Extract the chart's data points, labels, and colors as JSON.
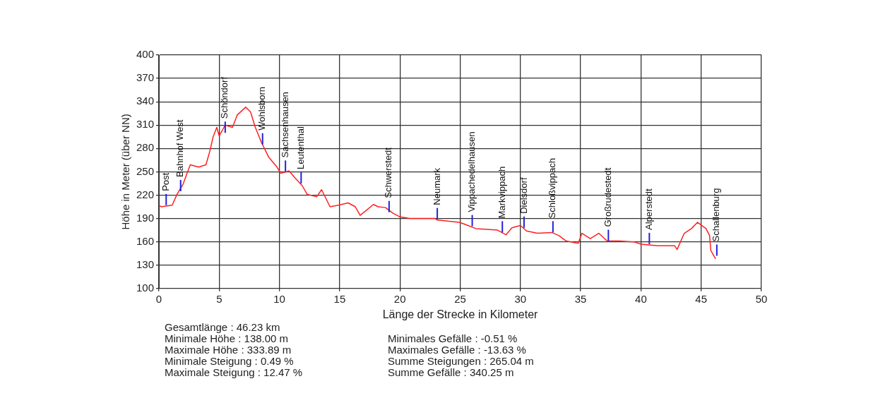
{
  "chart_data": {
    "type": "line",
    "xlabel": "Länge der Strecke in Kilometer",
    "ylabel": "Höhe in Meter (über NN)",
    "xlim": [
      0,
      50
    ],
    "xticks": [
      0,
      5,
      10,
      15,
      20,
      25,
      30,
      35,
      40,
      45,
      50
    ],
    "ylim": [
      100,
      400
    ],
    "yticks": [
      100,
      130,
      160,
      190,
      220,
      250,
      280,
      310,
      340,
      370,
      400
    ],
    "grid": true,
    "legend": false,
    "marker": "none",
    "line_style": "solid",
    "series": [
      {
        "color": "#ff2020",
        "x": [
          0,
          0.2,
          1.1,
          1.5,
          2,
          2.6,
          3.3,
          3.9,
          4.2,
          4.5,
          4.8,
          5.0,
          5.5,
          6.1,
          6.5,
          7.2,
          7.6,
          8.0,
          8.5,
          9.1,
          9.8,
          10.1,
          10.8,
          11.3,
          11.9,
          12.3,
          13.1,
          13.5,
          14.2,
          14.9,
          15.7,
          16.3,
          16.7,
          17.1,
          17.8,
          18.2,
          18.8,
          19.4,
          20.0,
          20.8,
          22.9,
          23.1,
          24.9,
          25.3,
          26.3,
          28.1,
          28.8,
          29.3,
          30.0,
          30.5,
          31.4,
          32.6,
          33.2,
          33.8,
          34.8,
          35.1,
          35.8,
          36.5,
          37.2,
          38.2,
          39.4,
          40.0,
          41.4,
          42.8,
          43.0,
          43.6,
          44.2,
          44.7,
          45.4,
          45.7,
          45.8,
          46.2
        ],
        "values": [
          207,
          205,
          207,
          221,
          234,
          259,
          256,
          259,
          275,
          295,
          307,
          296,
          310,
          307,
          323,
          333,
          327,
          307,
          288,
          269,
          256,
          248,
          251,
          242,
          232,
          221,
          218,
          227,
          205,
          207,
          210,
          205,
          194,
          199,
          208,
          205,
          204,
          197,
          192,
          190,
          190,
          188,
          185,
          183,
          177,
          175,
          169,
          178,
          181,
          174,
          171,
          172,
          168,
          161,
          158,
          171,
          164,
          171,
          161,
          161,
          160,
          157,
          155,
          155,
          150,
          171,
          177,
          185,
          177,
          168,
          149,
          138
        ]
      }
    ],
    "annotations": [
      {
        "text": "Post",
        "x": 0.6,
        "y": 207
      },
      {
        "text": "Bahnhof West",
        "x": 1.8,
        "y": 225
      },
      {
        "text": "Schöndorf",
        "x": 5.5,
        "y": 300
      },
      {
        "text": "Wohlsborn",
        "x": 8.6,
        "y": 285
      },
      {
        "text": "Sachsenhausen",
        "x": 10.5,
        "y": 250
      },
      {
        "text": "Leutenthal",
        "x": 11.8,
        "y": 235
      },
      {
        "text": "Schwerstedt",
        "x": 19.1,
        "y": 198
      },
      {
        "text": "Neumark",
        "x": 23.1,
        "y": 189
      },
      {
        "text": "Vippachedelhausen",
        "x": 26.0,
        "y": 180
      },
      {
        "text": "Markvippach",
        "x": 28.5,
        "y": 172
      },
      {
        "text": "Dielsdorf",
        "x": 30.3,
        "y": 178
      },
      {
        "text": "Schloßvippach",
        "x": 32.7,
        "y": 172
      },
      {
        "text": "Großrudestedt",
        "x": 37.3,
        "y": 161
      },
      {
        "text": "Alperstedt",
        "x": 40.7,
        "y": 157
      },
      {
        "text": "Schallenburg",
        "x": 46.3,
        "y": 142
      },
      "Gesamtlänge : 46.23 km",
      "Minimale Höhe : 138.00 m",
      "Maximale Höhe : 333.89 m",
      "Minimale Steigung : 0.49 %",
      "Maximale Steigung : 12.47 %",
      "Minimales Gefälle : -0.51 %",
      "Maximales Gefälle : -13.63 %",
      "Summe Steigungen : 265.04 m",
      "Summe Gefälle : 340.25 m"
    ]
  }
}
